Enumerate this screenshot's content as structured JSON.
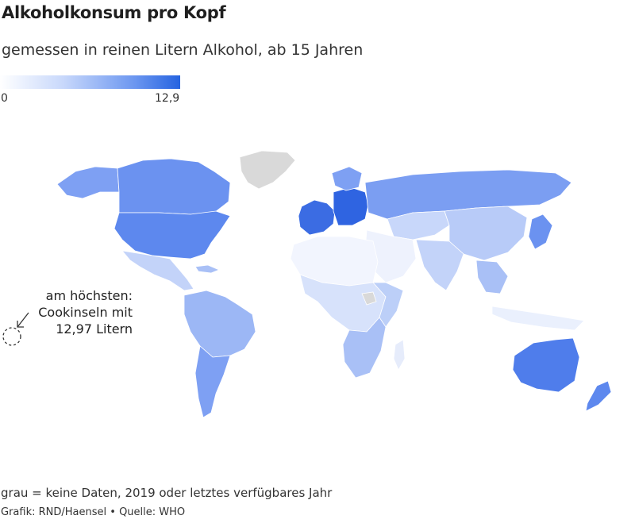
{
  "header": {
    "title": "Alkoholkonsum pro Kopf",
    "subtitle": "gemessen in reinen Litern Alkohol, ab 15 Jahren"
  },
  "legend": {
    "min_label": "0",
    "max_label": "12,9",
    "color_min": "#ffffff",
    "color_max": "#2563e0"
  },
  "annotation": {
    "lines": [
      "am höchsten:",
      "Cookinseln mit",
      "12,97 Litern"
    ],
    "icon": "arrow-pointer-icon"
  },
  "footer": {
    "note": "grau = keine Daten, 2019 oder letztes verfügbares Jahr",
    "credit_graphic": "Grafik: RND/Haensel",
    "separator": "•",
    "credit_source": "Quelle: WHO"
  },
  "colors": {
    "no_data": "#d9d9d9",
    "level_low": "#e6ecfb",
    "level_mid": "#9eb8f5",
    "level_high": "#5b86ee",
    "level_max": "#2a5fe0"
  }
}
